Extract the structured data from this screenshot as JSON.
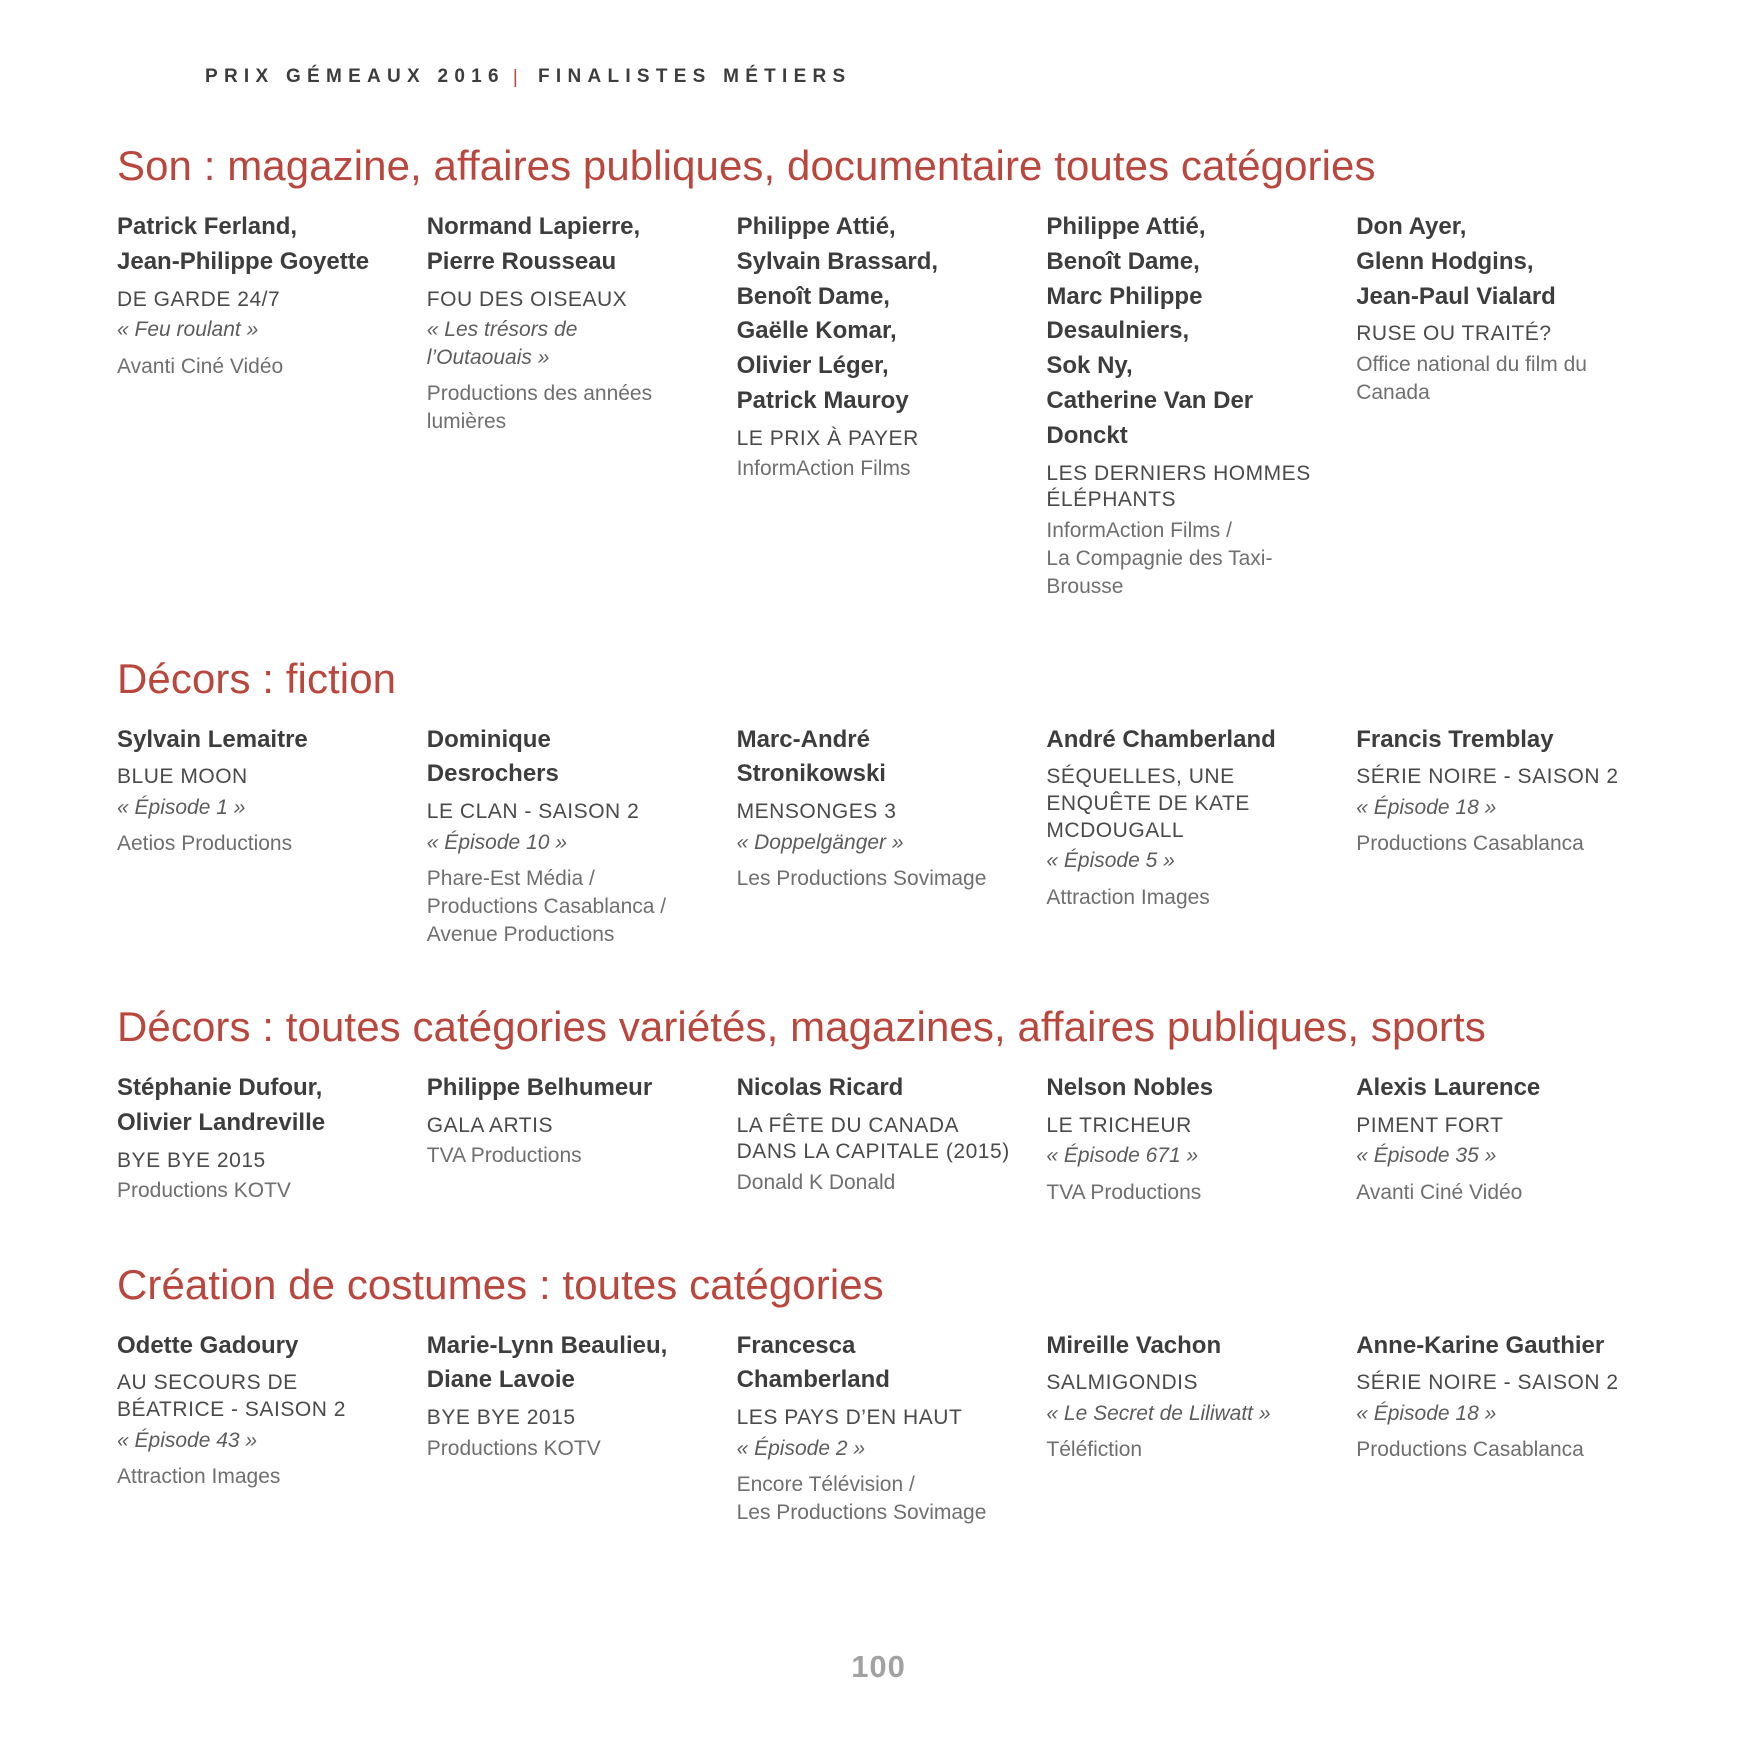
{
  "page": {
    "header": {
      "left": "PRIX GÉMEAUX 2016",
      "separator": "|",
      "right": "FINALISTES MÉTIERS"
    },
    "accent_color": "#b9473e",
    "page_number": "100"
  },
  "sections": [
    {
      "title": "Son : magazine, affaires publiques, documentaire toutes catégories",
      "entries": [
        {
          "names": "Patrick Ferland,\nJean-Philippe Goyette",
          "show": "DE GARDE 24/7",
          "episode": "« Feu roulant »",
          "producer": "Avanti Ciné Vidéo"
        },
        {
          "names": "Normand Lapierre,\nPierre Rousseau",
          "show": "FOU DES OISEAUX",
          "episode": "« Les trésors de\nl’Outaouais »",
          "producer": "Productions des années\nlumières"
        },
        {
          "names": "Philippe Attié,\nSylvain Brassard,\nBenoît Dame,\nGaëlle Komar,\nOlivier Léger,\nPatrick Mauroy",
          "show": "LE PRIX À PAYER",
          "episode": null,
          "producer": "InformAction Films"
        },
        {
          "names": "Philippe Attié,\nBenoît Dame,\nMarc Philippe\nDesaulniers,\nSok Ny,\nCatherine Van Der\nDonckt",
          "show": "LES DERNIERS HOMMES\nÉLÉPHANTS",
          "episode": null,
          "producer": "InformAction Films /\nLa Compagnie des Taxi-\nBrousse"
        },
        {
          "names": "Don Ayer,\nGlenn Hodgins,\nJean-Paul Vialard",
          "show": "RUSE OU TRAITÉ?",
          "episode": null,
          "producer": "Office national du film du\nCanada"
        }
      ]
    },
    {
      "title": "Décors : fiction",
      "entries": [
        {
          "names": "Sylvain Lemaitre",
          "show": "BLUE MOON",
          "episode": "« Épisode 1 »",
          "producer": "Aetios Productions"
        },
        {
          "names": "Dominique\nDesrochers",
          "show": "LE CLAN - SAISON 2",
          "episode": "« Épisode 10 »",
          "producer": "Phare-Est Média /\nProductions Casablanca /\nAvenue Productions"
        },
        {
          "names": "Marc-André\nStronikowski",
          "show": "MENSONGES 3",
          "episode": "« Doppelgänger »",
          "producer": "Les Productions Sovimage"
        },
        {
          "names": "André Chamberland",
          "show": "SÉQUELLES, UNE\nENQUÊTE DE KATE\nMCDOUGALL",
          "episode": "« Épisode 5 »",
          "producer": "Attraction Images"
        },
        {
          "names": "Francis Tremblay",
          "show": "SÉRIE NOIRE - SAISON 2",
          "episode": "« Épisode 18 »",
          "producer": "Productions Casablanca"
        }
      ]
    },
    {
      "title": "Décors : toutes catégories variétés, magazines, affaires publiques, sports",
      "entries": [
        {
          "names": "Stéphanie Dufour,\nOlivier Landreville",
          "show": "BYE BYE 2015",
          "episode": null,
          "producer": "Productions KOTV"
        },
        {
          "names": "Philippe Belhumeur",
          "show": "GALA ARTIS",
          "episode": null,
          "producer": "TVA Productions"
        },
        {
          "names": "Nicolas Ricard",
          "show": "LA FÊTE DU CANADA\nDANS LA CAPITALE (2015)",
          "episode": null,
          "producer": "Donald K Donald"
        },
        {
          "names": "Nelson Nobles",
          "show": "LE TRICHEUR",
          "episode": "« Épisode 671 »",
          "producer": "TVA Productions"
        },
        {
          "names": "Alexis Laurence",
          "show": "PIMENT FORT",
          "episode": "« Épisode 35 »",
          "producer": "Avanti Ciné Vidéo"
        }
      ]
    },
    {
      "title": "Création de costumes : toutes catégories",
      "entries": [
        {
          "names": "Odette Gadoury",
          "show": "AU SECOURS DE\nBÉATRICE - SAISON 2",
          "episode": "« Épisode 43 »",
          "producer": "Attraction Images"
        },
        {
          "names": "Marie-Lynn Beaulieu,\nDiane Lavoie",
          "show": "BYE BYE 2015",
          "episode": null,
          "producer": "Productions KOTV"
        },
        {
          "names": "Francesca\nChamberland",
          "show": "LES PAYS D’EN HAUT",
          "episode": "« Épisode 2 »",
          "producer": "Encore Télévision /\nLes Productions Sovimage"
        },
        {
          "names": "Mireille Vachon",
          "show": "SALMIGONDIS",
          "episode": "« Le Secret de Liliwatt »",
          "producer": "Téléfiction"
        },
        {
          "names": "Anne-Karine Gauthier",
          "show": "SÉRIE NOIRE - SAISON 2",
          "episode": "« Épisode 18 »",
          "producer": "Productions Casablanca"
        }
      ]
    }
  ]
}
